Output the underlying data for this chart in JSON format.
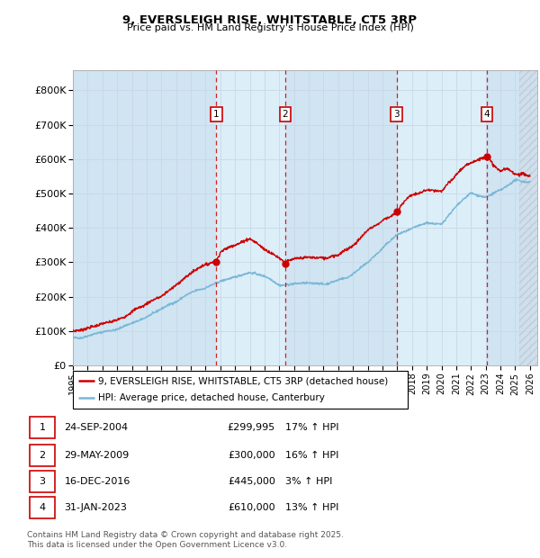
{
  "title_line1": "9, EVERSLEIGH RISE, WHITSTABLE, CT5 3RP",
  "title_line2": "Price paid vs. HM Land Registry's House Price Index (HPI)",
  "xlim_start": 1995.0,
  "xlim_end": 2026.5,
  "ylim_min": 0,
  "ylim_max": 860000,
  "yticks": [
    0,
    100000,
    200000,
    300000,
    400000,
    500000,
    600000,
    700000,
    800000
  ],
  "ytick_labels": [
    "£0",
    "£100K",
    "£200K",
    "£300K",
    "£400K",
    "£500K",
    "£600K",
    "£700K",
    "£800K"
  ],
  "xtick_years": [
    1995,
    1996,
    1997,
    1998,
    1999,
    2000,
    2001,
    2002,
    2003,
    2004,
    2005,
    2006,
    2007,
    2008,
    2009,
    2010,
    2011,
    2012,
    2013,
    2014,
    2015,
    2016,
    2017,
    2018,
    2019,
    2020,
    2021,
    2022,
    2023,
    2024,
    2025,
    2026
  ],
  "purchases": [
    {
      "label": "1",
      "date": 2004.73,
      "price": 299995,
      "pct": "17%",
      "date_str": "24-SEP-2004"
    },
    {
      "label": "2",
      "date": 2009.41,
      "price": 300000,
      "pct": "16%",
      "date_str": "29-MAY-2009"
    },
    {
      "label": "3",
      "date": 2016.96,
      "price": 445000,
      "pct": "3%",
      "date_str": "16-DEC-2016"
    },
    {
      "label": "4",
      "date": 2023.08,
      "price": 610000,
      "pct": "13%",
      "date_str": "31-JAN-2023"
    }
  ],
  "hpi_line_color": "#7ab8d8",
  "property_line_color": "#cc0000",
  "dashed_line_color": "#cc0000",
  "grid_color": "#c8d8e8",
  "plot_bg": "#dce8f4",
  "shade_between_color": "#c8dff0",
  "legend_label_property": "9, EVERSLEIGH RISE, WHITSTABLE, CT5 3RP (detached house)",
  "legend_label_hpi": "HPI: Average price, detached house, Canterbury",
  "footer": "Contains HM Land Registry data © Crown copyright and database right 2025.\nThis data is licensed under the Open Government Licence v3.0.",
  "marker_y": 730000,
  "hatch_start": 2025.25
}
